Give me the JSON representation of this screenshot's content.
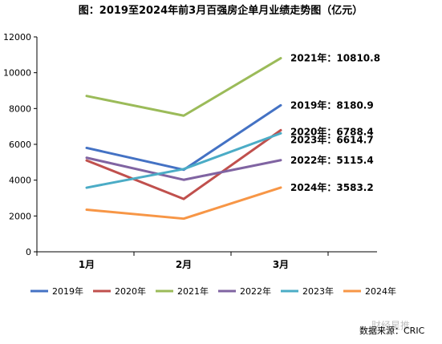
{
  "chart_data": {
    "type": "line",
    "title": "图：2019至2024年前3月百强房企单月业绩走势图（亿元）",
    "categories": [
      "1月",
      "2月",
      "3月"
    ],
    "ylim": [
      0,
      12000
    ],
    "yticks": [
      0,
      2000,
      4000,
      6000,
      8000,
      10000,
      12000
    ],
    "grid": false,
    "legend": "bottom",
    "series": [
      {
        "name": "2019年",
        "color": "#4472C4",
        "values": [
          5800,
          4580,
          8180.9
        ],
        "end_label": "2019年：8180.9"
      },
      {
        "name": "2020年",
        "color": "#C0504D",
        "values": [
          5100,
          2950,
          6788.4
        ],
        "end_label": "2020年：6788.4"
      },
      {
        "name": "2021年",
        "color": "#9BBB59",
        "values": [
          8700,
          7600,
          10810.8
        ],
        "end_label": "2021年：10810.8"
      },
      {
        "name": "2022年",
        "color": "#8064A2",
        "values": [
          5250,
          4020,
          5115.4
        ],
        "end_label": "2022年：5115.4"
      },
      {
        "name": "2023年",
        "color": "#4BACC6",
        "values": [
          3580,
          4620,
          6614.7
        ],
        "end_label": "2023年：6614.7"
      },
      {
        "name": "2024年",
        "color": "#F79646",
        "values": [
          2350,
          1850,
          3583.2
        ],
        "end_label": "2024年：3583.2"
      }
    ]
  },
  "source": "数据来源：CRIC",
  "watermark": "财经星推"
}
